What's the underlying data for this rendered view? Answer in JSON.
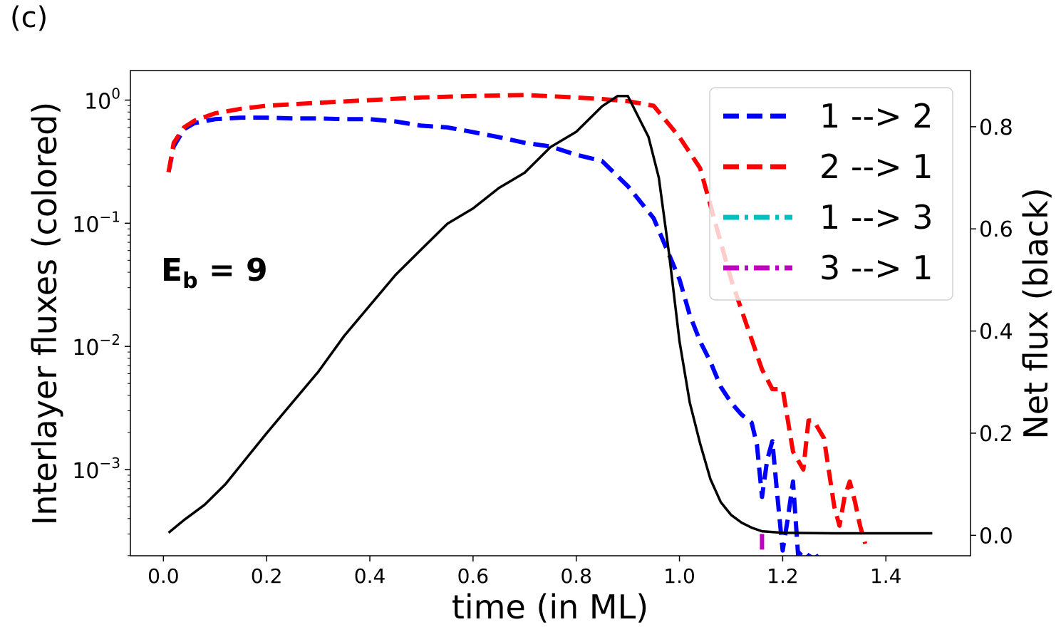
{
  "panel_label": "(c)",
  "chart_data": {
    "type": "line",
    "title": "",
    "xlabel": "time (in ML)",
    "ylabel_left": "Interlayer fluxes (colored)",
    "ylabel_right": "Net flux (black)",
    "annotation": {
      "base": "E",
      "sub": "b",
      "rest": " = 9"
    },
    "x_axis": {
      "lim": [
        -0.064,
        1.564
      ],
      "ticks": [
        0.0,
        0.2,
        0.4,
        0.6,
        0.8,
        1.0,
        1.2,
        1.4
      ],
      "tick_labels": [
        "0.0",
        "0.2",
        "0.4",
        "0.6",
        "0.8",
        "1.0",
        "1.2",
        "1.4"
      ]
    },
    "y_left": {
      "scale": "log",
      "lim_log10": [
        -3.7,
        0.24
      ],
      "ticks_log10": [
        0,
        -1,
        -2,
        -3
      ],
      "tick_labels": [
        {
          "base": "10",
          "exp": "0"
        },
        {
          "base": "10",
          "exp": "−1"
        },
        {
          "base": "10",
          "exp": "−2"
        },
        {
          "base": "10",
          "exp": "−3"
        }
      ]
    },
    "y_right": {
      "scale": "linear",
      "lim": [
        -0.04,
        0.91
      ],
      "ticks": [
        0.0,
        0.2,
        0.4,
        0.6,
        0.8
      ],
      "tick_labels": [
        "0.0",
        "0.2",
        "0.4",
        "0.6",
        "0.8"
      ]
    },
    "legend": {
      "position": "upper-right"
    },
    "series": [
      {
        "name": "1 --> 2",
        "axis": "left",
        "color": "#0000ff",
        "style": "dashed",
        "x": [
          0.01,
          0.02,
          0.04,
          0.06,
          0.1,
          0.15,
          0.2,
          0.25,
          0.3,
          0.35,
          0.4,
          0.45,
          0.5,
          0.55,
          0.6,
          0.65,
          0.7,
          0.75,
          0.8,
          0.85,
          0.9,
          0.95,
          1.0,
          1.02,
          1.04,
          1.06,
          1.08,
          1.1,
          1.12,
          1.14,
          1.15,
          1.16,
          1.17,
          1.18,
          1.19,
          1.2,
          1.21,
          1.22,
          1.23,
          1.24,
          1.25,
          1.26,
          1.27
        ],
        "y": [
          0.26,
          0.42,
          0.58,
          0.65,
          0.7,
          0.72,
          0.72,
          0.71,
          0.71,
          0.7,
          0.7,
          0.67,
          0.62,
          0.6,
          0.55,
          0.5,
          0.45,
          0.42,
          0.36,
          0.32,
          0.2,
          0.11,
          0.035,
          0.018,
          0.011,
          0.0075,
          0.0047,
          0.0035,
          0.0028,
          0.0024,
          0.0016,
          0.0006,
          0.0012,
          0.0017,
          0.0006,
          0.00022,
          0.0004,
          0.0008,
          0.0002,
          0.00022,
          0.0002,
          0.00019,
          0.0002
        ]
      },
      {
        "name": "2 --> 1",
        "axis": "left",
        "color": "#ff0000",
        "style": "dashed",
        "x": [
          0.01,
          0.02,
          0.04,
          0.06,
          0.1,
          0.15,
          0.2,
          0.3,
          0.4,
          0.5,
          0.6,
          0.7,
          0.8,
          0.85,
          0.9,
          0.95,
          1.0,
          1.04,
          1.06,
          1.08,
          1.1,
          1.13,
          1.16,
          1.18,
          1.2,
          1.22,
          1.24,
          1.25,
          1.26,
          1.28,
          1.3,
          1.31,
          1.32,
          1.33,
          1.34,
          1.35,
          1.36
        ],
        "y": [
          0.26,
          0.45,
          0.6,
          0.68,
          0.78,
          0.85,
          0.9,
          0.95,
          1.0,
          1.05,
          1.08,
          1.1,
          1.05,
          1.02,
          0.98,
          0.9,
          0.5,
          0.28,
          0.14,
          0.07,
          0.035,
          0.015,
          0.0065,
          0.0045,
          0.0045,
          0.0014,
          0.001,
          0.0025,
          0.0025,
          0.0018,
          0.0005,
          0.00035,
          0.0006,
          0.0008,
          0.00055,
          0.00035,
          0.00025
        ]
      },
      {
        "name": "1 --> 3",
        "axis": "left",
        "color": "#00bfbf",
        "style": "dashdot",
        "x": [],
        "y": []
      },
      {
        "name": "3 --> 1",
        "axis": "left",
        "color": "#bf00bf",
        "style": "dashdot",
        "x": [
          1.16,
          1.16
        ],
        "y": [
          0.0003,
          0.0002
        ]
      },
      {
        "name": "Net flux",
        "axis": "right",
        "color": "#000000",
        "style": "solid",
        "in_legend": false,
        "x": [
          0.01,
          0.04,
          0.08,
          0.12,
          0.16,
          0.2,
          0.25,
          0.3,
          0.35,
          0.4,
          0.45,
          0.5,
          0.55,
          0.6,
          0.65,
          0.7,
          0.75,
          0.8,
          0.85,
          0.88,
          0.9,
          0.92,
          0.94,
          0.96,
          0.98,
          1.0,
          1.02,
          1.04,
          1.06,
          1.08,
          1.1,
          1.12,
          1.14,
          1.16,
          1.2,
          1.3,
          1.4,
          1.49
        ],
        "y": [
          0.005,
          0.03,
          0.06,
          0.1,
          0.15,
          0.2,
          0.26,
          0.32,
          0.39,
          0.45,
          0.51,
          0.56,
          0.61,
          0.64,
          0.68,
          0.71,
          0.76,
          0.79,
          0.84,
          0.86,
          0.86,
          0.82,
          0.78,
          0.7,
          0.55,
          0.38,
          0.26,
          0.18,
          0.11,
          0.065,
          0.04,
          0.025,
          0.015,
          0.008,
          0.005,
          0.004,
          0.004,
          0.004
        ]
      }
    ]
  }
}
